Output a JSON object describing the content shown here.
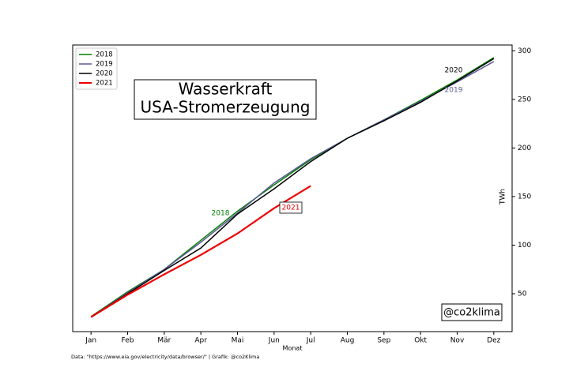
{
  "chart_data": {
    "type": "line",
    "title": "Wasserkraft",
    "subtitle": "USA-Stromerzeugung",
    "xlabel": "Monat",
    "ylabel": "TWh",
    "watermark": "@co2klima",
    "source": "Data: \"https://www.eia.gov/electricity/data/browser/\" | Grafik: @co2Klima",
    "categories": [
      "Jan",
      "Feb",
      "Mär",
      "Apr",
      "Mai",
      "Jun",
      "Jul",
      "Aug",
      "Sep",
      "Okt",
      "Nov",
      "Dez"
    ],
    "series": [
      {
        "name": "2018",
        "color": "#007f00",
        "values": [
          26.5,
          52,
          75,
          105,
          135,
          162,
          188,
          210,
          229,
          249,
          270,
          293
        ]
      },
      {
        "name": "2019",
        "color": "#5a5a96",
        "values": [
          26,
          51,
          75,
          103,
          133,
          164,
          189,
          210,
          229,
          248,
          268,
          289
        ]
      },
      {
        "name": "2020",
        "color": "#000000",
        "values": [
          26,
          50,
          74,
          97,
          132,
          158,
          186,
          210,
          228,
          247,
          269,
          292
        ]
      },
      {
        "name": "2021",
        "color": "#ee0000",
        "values": [
          26,
          49,
          70,
          90,
          112,
          138,
          161,
          null,
          null,
          null,
          null,
          null
        ]
      }
    ],
    "annotations": [
      {
        "text": "2018",
        "color": "#007f00"
      },
      {
        "text": "2021",
        "color": "#ee0000"
      },
      {
        "text": "2020",
        "color": "#000000"
      },
      {
        "text": "2019",
        "color": "#5a5a96"
      }
    ],
    "ylim": [
      11,
      306
    ],
    "yticks": [
      50,
      100,
      150,
      200,
      250,
      300
    ],
    "y_axis_side": "right",
    "legend": "upper left"
  }
}
